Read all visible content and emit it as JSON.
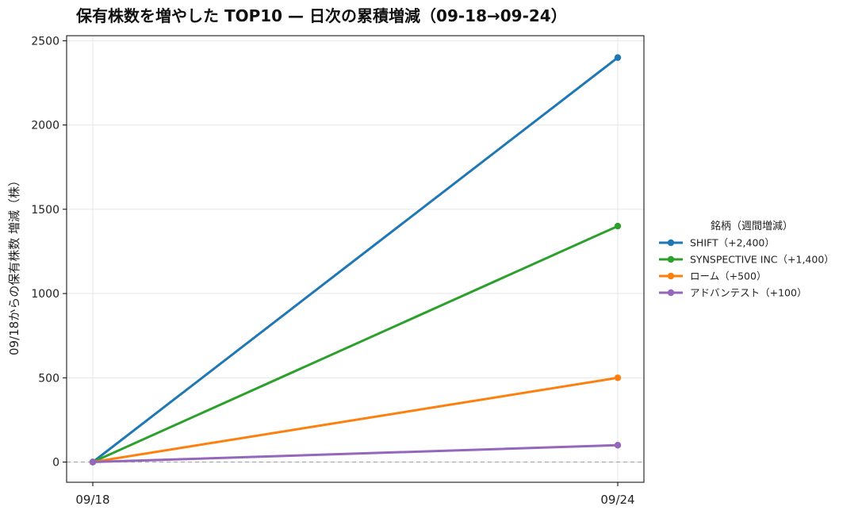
{
  "chart_data": {
    "type": "line",
    "title": "保有株数を増やした TOP10 — 日次の累積増減（09-18→09-24）",
    "xlabel": "",
    "ylabel": "09/18からの保有株数 増減（株）",
    "x": [
      "09/18",
      "09/24"
    ],
    "ylim": [
      -120,
      2530
    ],
    "yticks": [
      0,
      500,
      1000,
      1500,
      2000,
      2500
    ],
    "grid": true,
    "zero_line": true,
    "legend": {
      "title": "銘柄（週間増減）",
      "placement": "right"
    },
    "series": [
      {
        "name": "SHIFT（+2,400）",
        "values": [
          0,
          2400
        ],
        "color": "#1f77b4"
      },
      {
        "name": "SYNSPECTIVE INC（+1,400）",
        "values": [
          0,
          1400
        ],
        "color": "#2ca02c"
      },
      {
        "name": "ローム（+500）",
        "values": [
          0,
          500
        ],
        "color": "#ff7f0e"
      },
      {
        "name": "アドバンテスト（+100）",
        "values": [
          0,
          100
        ],
        "color": "#9467bd"
      }
    ]
  }
}
